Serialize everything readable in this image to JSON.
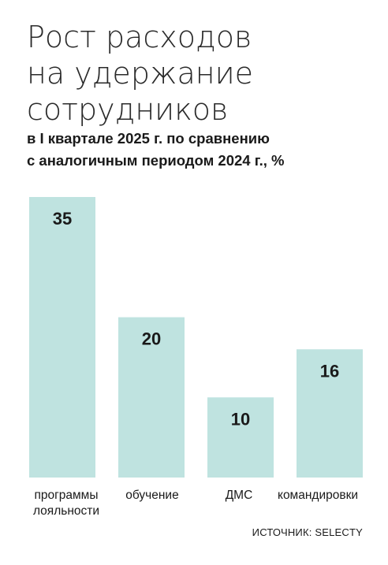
{
  "title_lines": [
    "Рост расходов",
    "на удержание",
    "сотрудников"
  ],
  "subtitle_lines": [
    "в I квартале 2025 г. по сравнению",
    "с аналогичным периодом 2024 г., %"
  ],
  "source": "ИСТОЧНИК: SELECTY",
  "colors": {
    "bar": "#bfe3e0",
    "text": "#1a1a1a"
  },
  "chart_data": {
    "type": "bar",
    "title": "Рост расходов на удержание сотрудников",
    "subtitle": "в I квартале 2025 г. по сравнению с аналогичным периодом 2024 г., %",
    "categories": [
      [
        "программы",
        "лояльности"
      ],
      [
        "обучение"
      ],
      [
        "ДМС"
      ],
      [
        "командировки"
      ]
    ],
    "values": [
      35,
      20,
      10,
      16
    ],
    "data_labels": [
      "35",
      "20",
      "10",
      "16"
    ],
    "xlabel": "",
    "ylabel": "",
    "ylim": [
      0,
      35
    ],
    "grid": false,
    "legend": "none"
  }
}
